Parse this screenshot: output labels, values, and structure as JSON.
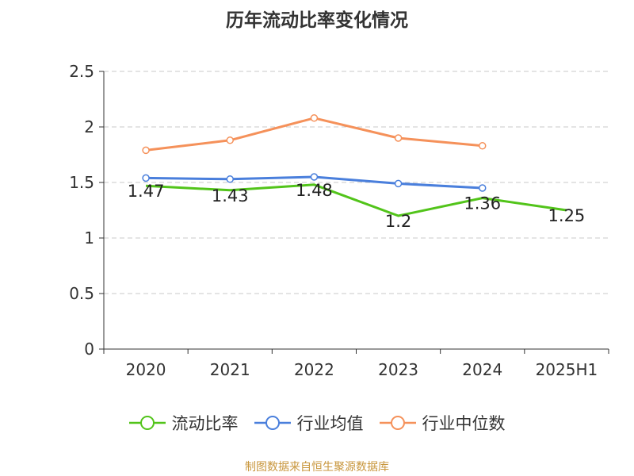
{
  "title": "历年流动比率变化情况",
  "source_note": "制图数据来自恒生聚源数据库",
  "chart_data": {
    "type": "line",
    "title": "历年流动比率变化情况",
    "categories": [
      "2020",
      "2021",
      "2022",
      "2023",
      "2024",
      "2025H1"
    ],
    "ylim": [
      0,
      2.5
    ],
    "yticks": [
      "0",
      "0.5",
      "1",
      "1.5",
      "2",
      "2.5"
    ],
    "grid": true,
    "legend_position": "bottom",
    "series": [
      {
        "name": "流动比率",
        "color": "#52c41a",
        "values": [
          1.47,
          1.43,
          1.48,
          1.2,
          1.36,
          1.25
        ],
        "labels": [
          "1.47",
          "1.43",
          "1.48",
          "1.2",
          "1.36",
          "1.25"
        ]
      },
      {
        "name": "行业均值",
        "color": "#4a7fdc",
        "values": [
          1.54,
          1.53,
          1.55,
          1.49,
          1.45,
          null
        ]
      },
      {
        "name": "行业中位数",
        "color": "#f5915a",
        "values": [
          1.79,
          1.88,
          2.08,
          1.9,
          1.83,
          null
        ]
      }
    ]
  }
}
